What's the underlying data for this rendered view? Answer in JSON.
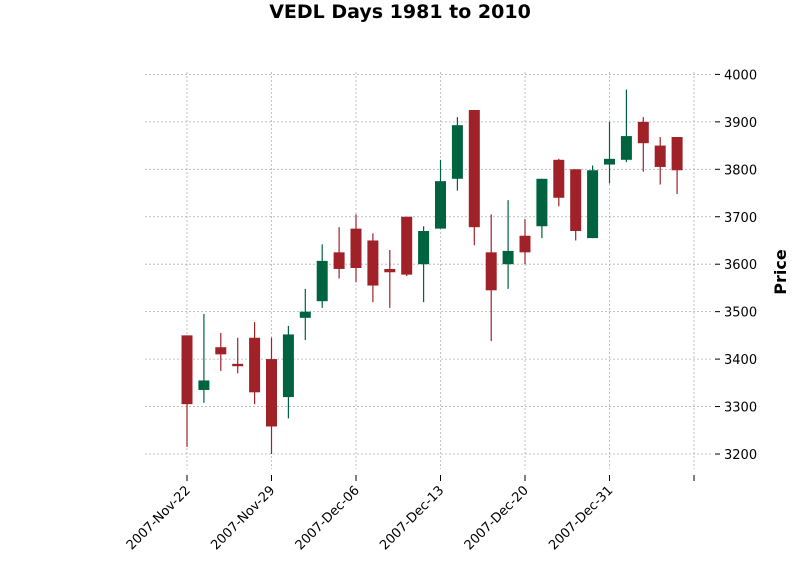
{
  "chart_data": {
    "type": "candlestick",
    "title": "VEDL Days 1981 to 2010",
    "ylabel": "Price",
    "ylim": [
      3160,
      4020
    ],
    "yticks": [
      3200,
      3300,
      3400,
      3500,
      3600,
      3700,
      3800,
      3900,
      4000
    ],
    "grid": true,
    "y_axis_side": "right",
    "colors": {
      "up": "#006340",
      "down": "#A02128",
      "grid": "#b0b0b0"
    },
    "xticks": [
      {
        "index": 0,
        "label": "2007-Nov-22"
      },
      {
        "index": 5,
        "label": "2007-Nov-29"
      },
      {
        "index": 10,
        "label": "2007-Dec-06"
      },
      {
        "index": 15,
        "label": "2007-Dec-13"
      },
      {
        "index": 20,
        "label": "2007-Dec-20"
      },
      {
        "index": 25,
        "label": "2007-Dec-31"
      },
      {
        "index": 30,
        "label": ""
      }
    ],
    "candles": [
      {
        "open": 3450,
        "high": 3450,
        "low": 3215,
        "close": 3305
      },
      {
        "open": 3335,
        "high": 3495,
        "low": 3308,
        "close": 3355
      },
      {
        "open": 3425,
        "high": 3455,
        "low": 3375,
        "close": 3410
      },
      {
        "open": 3390,
        "high": 3445,
        "low": 3370,
        "close": 3385
      },
      {
        "open": 3445,
        "high": 3478,
        "low": 3305,
        "close": 3330
      },
      {
        "open": 3400,
        "high": 3445,
        "low": 3200,
        "close": 3258
      },
      {
        "open": 3320,
        "high": 3470,
        "low": 3275,
        "close": 3452
      },
      {
        "open": 3487,
        "high": 3548,
        "low": 3440,
        "close": 3500
      },
      {
        "open": 3522,
        "high": 3642,
        "low": 3508,
        "close": 3607
      },
      {
        "open": 3625,
        "high": 3678,
        "low": 3570,
        "close": 3590
      },
      {
        "open": 3675,
        "high": 3705,
        "low": 3562,
        "close": 3592
      },
      {
        "open": 3650,
        "high": 3665,
        "low": 3520,
        "close": 3555
      },
      {
        "open": 3590,
        "high": 3630,
        "low": 3508,
        "close": 3583
      },
      {
        "open": 3700,
        "high": 3700,
        "low": 3575,
        "close": 3578
      },
      {
        "open": 3600,
        "high": 3680,
        "low": 3520,
        "close": 3670
      },
      {
        "open": 3675,
        "high": 3820,
        "low": 3675,
        "close": 3775
      },
      {
        "open": 3780,
        "high": 3910,
        "low": 3755,
        "close": 3893
      },
      {
        "open": 3925,
        "high": 3925,
        "low": 3640,
        "close": 3678
      },
      {
        "open": 3625,
        "high": 3705,
        "low": 3438,
        "close": 3545
      },
      {
        "open": 3600,
        "high": 3735,
        "low": 3548,
        "close": 3628
      },
      {
        "open": 3660,
        "high": 3695,
        "low": 3600,
        "close": 3625
      },
      {
        "open": 3680,
        "high": 3780,
        "low": 3655,
        "close": 3780
      },
      {
        "open": 3820,
        "high": 3822,
        "low": 3722,
        "close": 3740
      },
      {
        "open": 3800,
        "high": 3800,
        "low": 3650,
        "close": 3670
      },
      {
        "open": 3655,
        "high": 3808,
        "low": 3655,
        "close": 3798
      },
      {
        "open": 3810,
        "high": 3900,
        "low": 3770,
        "close": 3822
      },
      {
        "open": 3820,
        "high": 3968,
        "low": 3815,
        "close": 3870
      },
      {
        "open": 3900,
        "high": 3910,
        "low": 3795,
        "close": 3855
      },
      {
        "open": 3850,
        "high": 3868,
        "low": 3768,
        "close": 3805
      },
      {
        "open": 3868,
        "high": 3868,
        "low": 3748,
        "close": 3798
      }
    ]
  }
}
